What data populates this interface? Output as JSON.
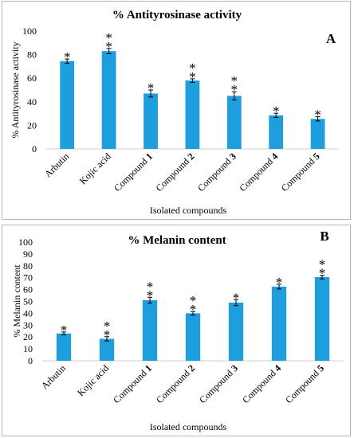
{
  "colors": {
    "bar": "#1f9ede",
    "axis": "#d0d0d0",
    "text": "#000000",
    "border": "#b7b7b7"
  },
  "chart_data": [
    {
      "type": "bar",
      "panel_label": "A",
      "title": "% Antityrosinase activity",
      "xlabel": "Isolated compounds",
      "ylabel": "% Antityrosinase activity",
      "ylim": [
        0,
        100
      ],
      "yticks": [
        0,
        20,
        40,
        60,
        80,
        100
      ],
      "categories": [
        "Arbutin",
        "Kojic acid",
        "Compound 1",
        "Compound 2",
        "Compound 3",
        "Compound 4",
        "Compound 5"
      ],
      "category_tick_labels": [
        {
          "name": "Arbutin",
          "number": ""
        },
        {
          "name": "Kojic acid",
          "number": ""
        },
        {
          "name": "Compound ",
          "number": "1"
        },
        {
          "name": "Compound ",
          "number": "2"
        },
        {
          "name": "Compound ",
          "number": "3"
        },
        {
          "name": "Compound ",
          "number": "4"
        },
        {
          "name": "Compound ",
          "number": "5"
        }
      ],
      "values": [
        74.5,
        83,
        47,
        58,
        45,
        28.5,
        25.5
      ],
      "errors": [
        1.8,
        2.2,
        3,
        1.5,
        3.5,
        1.8,
        1.8
      ],
      "significance": [
        "*",
        "**",
        "*",
        "**",
        "**",
        "*",
        "*"
      ],
      "grid": false,
      "legend": "none"
    },
    {
      "type": "bar",
      "panel_label": "B",
      "title": "% Melanin content",
      "xlabel": "Isolated compounds",
      "ylabel": "% Melanin content",
      "ylim": [
        0,
        100
      ],
      "yticks": [
        0,
        10,
        20,
        30,
        40,
        50,
        60,
        70,
        80,
        90,
        100
      ],
      "categories": [
        "Arbutin",
        "Kojic acid",
        "Compound 1",
        "Compound 2",
        "Compound 3",
        "Compound 4",
        "Compound 5"
      ],
      "category_tick_labels": [
        {
          "name": "Arbutin",
          "number": ""
        },
        {
          "name": "Kojic acid",
          "number": ""
        },
        {
          "name": "Compound ",
          "number": "1"
        },
        {
          "name": "Compound ",
          "number": "2"
        },
        {
          "name": "Compound ",
          "number": "3"
        },
        {
          "name": "Compound ",
          "number": "4"
        },
        {
          "name": "Compound ",
          "number": "5"
        }
      ],
      "values": [
        23,
        18.5,
        51,
        40,
        49,
        62.5,
        70.5
      ],
      "errors": [
        1.2,
        1.8,
        2.5,
        1.5,
        2.5,
        2,
        1.5
      ],
      "significance": [
        "*",
        "**",
        "**",
        "**",
        "*",
        "*",
        "**"
      ],
      "grid": false,
      "legend": "none"
    }
  ]
}
